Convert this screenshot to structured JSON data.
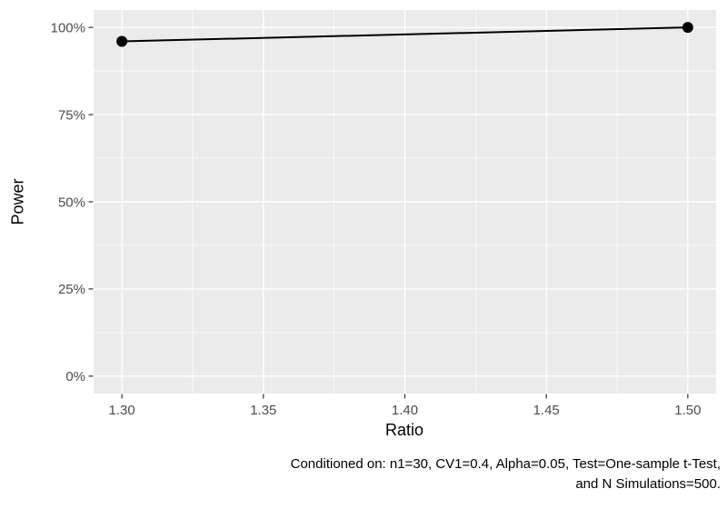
{
  "chart_data": {
    "type": "line",
    "title": "",
    "xlabel": "Ratio",
    "ylabel": "Power",
    "x": [
      1.3,
      1.5
    ],
    "series": [
      {
        "name": "Power",
        "values": [
          0.96,
          1.0
        ]
      }
    ],
    "xlim": [
      1.29,
      1.51
    ],
    "ylim": [
      -0.05,
      1.05
    ],
    "x_ticks": [
      1.3,
      1.35,
      1.4,
      1.45,
      1.5
    ],
    "x_tick_labels": [
      "1.30",
      "1.35",
      "1.40",
      "1.45",
      "1.50"
    ],
    "x_minor_ticks": [
      1.325,
      1.375,
      1.425,
      1.475
    ],
    "y_ticks": [
      0,
      0.25,
      0.5,
      0.75,
      1.0
    ],
    "y_tick_labels": [
      "0%",
      "25%",
      "50%",
      "75%",
      "100%"
    ],
    "y_minor_ticks": [
      0.125,
      0.375,
      0.625,
      0.875
    ],
    "grid": true,
    "legend": "none",
    "caption_lines": [
      "Conditioned on: n1=30, CV1=0.4, Alpha=0.05, Test=One-sample t-Test,",
      "and N Simulations=500."
    ],
    "style": {
      "panel_bg": "#EBEBEB",
      "grid_color": "#FFFFFF",
      "line_color": "#000000",
      "point_color": "#000000",
      "tick_label_color": "#4D4D4D",
      "tick_mark_color": "#333333",
      "axis_title_color": "#000000",
      "caption_color": "#000000"
    }
  }
}
